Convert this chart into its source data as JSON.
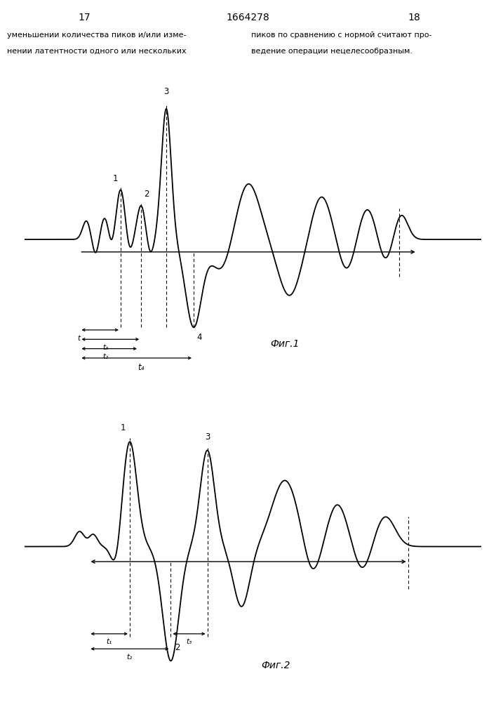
{
  "background": "#ffffff",
  "fig1_caption": "Фиг.1",
  "fig2_caption": "Фиг.2",
  "page_num_left": "17",
  "page_num_center": "1664278",
  "page_num_right": "18",
  "text_left_1": "уменьшении количества пиков и/или изме-",
  "text_left_2": "нении латентности одного или нескольких",
  "text_right_1": "пиков по сравнению с нормой считают про-",
  "text_right_2": "ведение операции нецелесообразным."
}
